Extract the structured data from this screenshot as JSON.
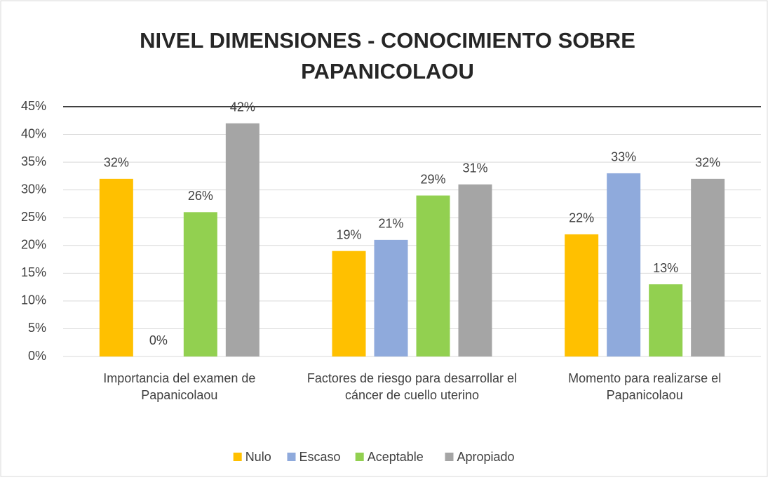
{
  "chart_data": {
    "type": "bar",
    "title": "NIVEL DIMENSIONES - CONOCIMIENTO SOBRE PAPANICOLAOU",
    "categories": [
      "Importancia del examen de Papanicolaou",
      "Factores de riesgo para desarrollar el cáncer de cuello uterino",
      "Momento para realizarse el Papanicolaou"
    ],
    "series": [
      {
        "name": "Nulo",
        "color": "#ffc000",
        "values": [
          32,
          19,
          22
        ],
        "value_labels": [
          "32%",
          "19%",
          "22%"
        ]
      },
      {
        "name": "Escaso",
        "color": "#8faadc",
        "values": [
          0,
          21,
          33
        ],
        "value_labels": [
          "0%",
          "21%",
          "33%"
        ]
      },
      {
        "name": "Aceptable",
        "color": "#92d050",
        "values": [
          26,
          29,
          13
        ],
        "value_labels": [
          "26%",
          "29%",
          "13%"
        ]
      },
      {
        "name": "Apropiado",
        "color": "#a5a5a5",
        "values": [
          42,
          31,
          32
        ],
        "value_labels": [
          "42%",
          "31%",
          "32%"
        ]
      }
    ],
    "ylim": [
      0,
      45
    ],
    "yticks": [
      {
        "value": 0,
        "label": "0%"
      },
      {
        "value": 5,
        "label": "5%"
      },
      {
        "value": 10,
        "label": "10%"
      },
      {
        "value": 15,
        "label": "15%"
      },
      {
        "value": 20,
        "label": "20%"
      },
      {
        "value": 25,
        "label": "25%"
      },
      {
        "value": 30,
        "label": "30%"
      },
      {
        "value": 35,
        "label": "35%"
      },
      {
        "value": 40,
        "label": "40%"
      },
      {
        "value": 45,
        "label": "45%"
      }
    ],
    "grid": true,
    "legend": "bottom"
  }
}
